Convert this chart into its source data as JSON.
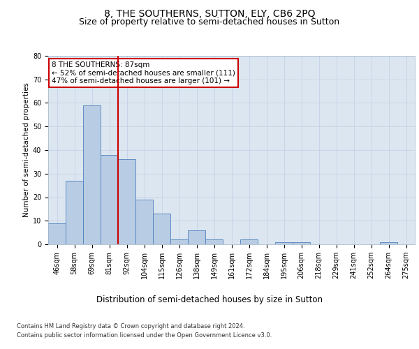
{
  "title": "8, THE SOUTHERNS, SUTTON, ELY, CB6 2PQ",
  "subtitle": "Size of property relative to semi-detached houses in Sutton",
  "xlabel": "Distribution of semi-detached houses by size in Sutton",
  "ylabel": "Number of semi-detached properties",
  "categories": [
    "46sqm",
    "58sqm",
    "69sqm",
    "81sqm",
    "92sqm",
    "104sqm",
    "115sqm",
    "126sqm",
    "138sqm",
    "149sqm",
    "161sqm",
    "172sqm",
    "184sqm",
    "195sqm",
    "206sqm",
    "218sqm",
    "229sqm",
    "241sqm",
    "252sqm",
    "264sqm",
    "275sqm"
  ],
  "values": [
    9,
    27,
    59,
    38,
    36,
    19,
    13,
    2,
    6,
    2,
    0,
    2,
    0,
    1,
    1,
    0,
    0,
    0,
    0,
    1,
    0
  ],
  "bar_color": "#b8cce4",
  "bar_edge_color": "#4f81bd",
  "vline_color": "#cc0000",
  "annotation_title": "8 THE SOUTHERNS: 87sqm",
  "annotation_line1": "← 52% of semi-detached houses are smaller (111)",
  "annotation_line2": "47% of semi-detached houses are larger (101) →",
  "annotation_box_color": "#ffffff",
  "annotation_box_edge": "#cc0000",
  "ylim": [
    0,
    80
  ],
  "yticks": [
    0,
    10,
    20,
    30,
    40,
    50,
    60,
    70,
    80
  ],
  "grid_color": "#c8d4e8",
  "background_color": "#dce6f0",
  "footer_line1": "Contains HM Land Registry data © Crown copyright and database right 2024.",
  "footer_line2": "Contains public sector information licensed under the Open Government Licence v3.0.",
  "title_fontsize": 10,
  "subtitle_fontsize": 9,
  "xlabel_fontsize": 8.5,
  "ylabel_fontsize": 7.5,
  "tick_fontsize": 7,
  "annotation_fontsize": 7.5,
  "footer_fontsize": 6
}
